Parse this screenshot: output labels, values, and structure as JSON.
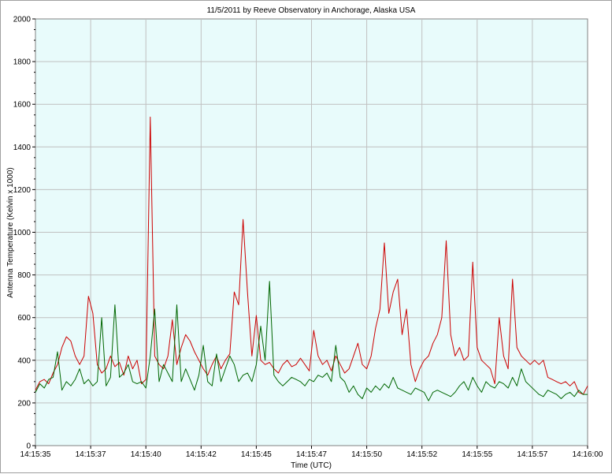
{
  "chart_data": {
    "type": "line",
    "title": "11/5/2011  by  Reeve Observatory  in  Anchorage, Alaska  USA",
    "xlabel": "Time (UTC)",
    "ylabel": "Antenna Temperature (Kelvin x 1000)",
    "xlim": [
      "14:15:35",
      "14:16:00"
    ],
    "ylim": [
      0,
      2000
    ],
    "x_ticks": [
      "14:15:35",
      "14:15:37",
      "14:15:40",
      "14:15:42",
      "14:15:45",
      "14:15:47",
      "14:15:50",
      "14:15:52",
      "14:15:55",
      "14:15:57",
      "14:16:00"
    ],
    "y_ticks": [
      0,
      200,
      400,
      600,
      800,
      1000,
      1200,
      1400,
      1600,
      1800,
      2000
    ],
    "grid": true,
    "legend": "none",
    "plot_background": "#e8fbfb",
    "series": [
      {
        "color": "#cc0000",
        "x": [
          0.0,
          0.2,
          0.4,
          0.6,
          0.8,
          1.0,
          1.2,
          1.4,
          1.6,
          1.8,
          2.0,
          2.2,
          2.4,
          2.6,
          2.8,
          3.0,
          3.2,
          3.4,
          3.6,
          3.8,
          4.0,
          4.2,
          4.4,
          4.6,
          4.8,
          5.0,
          5.2,
          5.4,
          5.6,
          5.8,
          6.0,
          6.2,
          6.4,
          6.6,
          6.8,
          7.0,
          7.2,
          7.4,
          7.6,
          7.8,
          8.0,
          8.2,
          8.4,
          8.6,
          8.8,
          9.0,
          9.2,
          9.4,
          9.6,
          9.8,
          10.0,
          10.2,
          10.4,
          10.6,
          10.8,
          11.0,
          11.2,
          11.4,
          11.6,
          11.8,
          12.0,
          12.2,
          12.4,
          12.6,
          12.8,
          13.0,
          13.2,
          13.4,
          13.6,
          13.8,
          14.0,
          14.2,
          14.4,
          14.6,
          14.8,
          15.0,
          15.2,
          15.4,
          15.6,
          15.8,
          16.0,
          16.2,
          16.4,
          16.6,
          16.8,
          17.0,
          17.2,
          17.4,
          17.6,
          17.8,
          18.0,
          18.2,
          18.4,
          18.6,
          18.8,
          19.0,
          19.2,
          19.4,
          19.6,
          19.8,
          20.0,
          20.2,
          20.4,
          20.6,
          20.8,
          21.0,
          21.2,
          21.4,
          21.6,
          21.8,
          22.0,
          22.2,
          22.4,
          22.6,
          22.8,
          23.0,
          23.2,
          23.4,
          23.6,
          23.8,
          24.0,
          24.2,
          24.4,
          24.6,
          24.8,
          25.0
        ],
        "y": [
          260,
          300,
          310,
          290,
          340,
          380,
          460,
          510,
          490,
          420,
          380,
          420,
          700,
          620,
          380,
          340,
          360,
          420,
          370,
          390,
          330,
          420,
          360,
          400,
          290,
          310,
          1540,
          420,
          380,
          360,
          420,
          590,
          380,
          460,
          520,
          490,
          440,
          400,
          360,
          330,
          380,
          420,
          360,
          400,
          430,
          720,
          660,
          1060,
          720,
          420,
          610,
          400,
          380,
          390,
          360,
          340,
          380,
          400,
          370,
          380,
          410,
          380,
          350,
          540,
          420,
          380,
          400,
          350,
          420,
          380,
          340,
          360,
          420,
          480,
          380,
          360,
          420,
          550,
          640,
          950,
          620,
          720,
          780,
          520,
          640,
          380,
          300,
          360,
          400,
          420,
          480,
          520,
          600,
          960,
          520,
          420,
          460,
          400,
          420,
          860,
          460,
          400,
          380,
          360,
          290,
          600,
          420,
          360,
          780,
          460,
          420,
          400,
          380,
          400,
          380,
          400,
          320,
          310,
          300,
          290,
          300,
          280,
          300,
          250,
          240,
          280
        ]
      },
      {
        "color": "#006600",
        "x": [
          0.0,
          0.2,
          0.4,
          0.6,
          0.8,
          1.0,
          1.2,
          1.4,
          1.6,
          1.8,
          2.0,
          2.2,
          2.4,
          2.6,
          2.8,
          3.0,
          3.2,
          3.4,
          3.6,
          3.8,
          4.0,
          4.2,
          4.4,
          4.6,
          4.8,
          5.0,
          5.2,
          5.4,
          5.6,
          5.8,
          6.0,
          6.2,
          6.4,
          6.6,
          6.8,
          7.0,
          7.2,
          7.4,
          7.6,
          7.8,
          8.0,
          8.2,
          8.4,
          8.6,
          8.8,
          9.0,
          9.2,
          9.4,
          9.6,
          9.8,
          10.0,
          10.2,
          10.4,
          10.6,
          10.8,
          11.0,
          11.2,
          11.4,
          11.6,
          11.8,
          12.0,
          12.2,
          12.4,
          12.6,
          12.8,
          13.0,
          13.2,
          13.4,
          13.6,
          13.8,
          14.0,
          14.2,
          14.4,
          14.6,
          14.8,
          15.0,
          15.2,
          15.4,
          15.6,
          15.8,
          16.0,
          16.2,
          16.4,
          16.6,
          16.8,
          17.0,
          17.2,
          17.4,
          17.6,
          17.8,
          18.0,
          18.2,
          18.4,
          18.6,
          18.8,
          19.0,
          19.2,
          19.4,
          19.6,
          19.8,
          20.0,
          20.2,
          20.4,
          20.6,
          20.8,
          21.0,
          21.2,
          21.4,
          21.6,
          21.8,
          22.0,
          22.2,
          22.4,
          22.6,
          22.8,
          23.0,
          23.2,
          23.4,
          23.6,
          23.8,
          24.0,
          24.2,
          24.4,
          24.6,
          24.8,
          25.0
        ],
        "y": [
          250,
          290,
          270,
          310,
          320,
          440,
          260,
          300,
          280,
          310,
          360,
          290,
          310,
          280,
          300,
          600,
          280,
          320,
          660,
          320,
          340,
          380,
          300,
          290,
          300,
          270,
          420,
          640,
          300,
          380,
          340,
          300,
          660,
          300,
          360,
          310,
          260,
          330,
          470,
          300,
          280,
          430,
          300,
          360,
          420,
          380,
          300,
          330,
          340,
          300,
          380,
          560,
          400,
          770,
          330,
          300,
          280,
          300,
          320,
          310,
          300,
          280,
          310,
          300,
          330,
          320,
          340,
          300,
          470,
          320,
          300,
          250,
          280,
          240,
          220,
          270,
          250,
          280,
          260,
          290,
          270,
          320,
          270,
          260,
          250,
          240,
          270,
          260,
          250,
          210,
          250,
          260,
          250,
          240,
          230,
          250,
          280,
          300,
          260,
          320,
          280,
          250,
          300,
          280,
          270,
          300,
          290,
          270,
          320,
          280,
          360,
          300,
          280,
          260,
          240,
          230,
          260,
          250,
          240,
          220,
          240,
          250,
          230,
          260,
          240,
          240
        ]
      }
    ]
  }
}
